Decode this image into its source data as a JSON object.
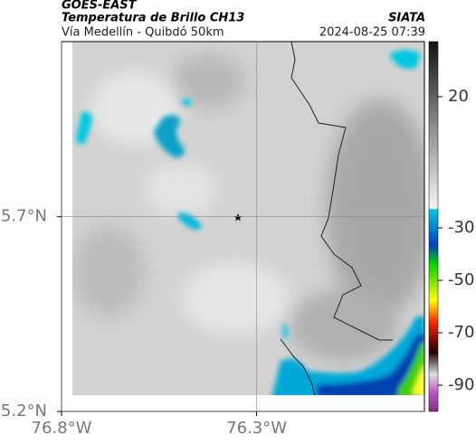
{
  "header": {
    "satellite": "GOES-EAST",
    "title": "Temperatura de Brillo CH13",
    "source": "SIATA",
    "subtitle": "Vía Medellín - Quibdó 50km",
    "timestamp": "2024-08-25 07:39"
  },
  "map": {
    "lonlim": [
      76.8,
      75.87
    ],
    "latlim": [
      5.2,
      6.15
    ],
    "lon_ticks": [
      {
        "value": 76.8,
        "label": "76.8°W"
      },
      {
        "value": 76.3,
        "label": "76.3°W"
      }
    ],
    "lat_ticks": [
      {
        "value": 5.7,
        "label": "5.7°N"
      },
      {
        "value": 5.2,
        "label": "5.2°N"
      }
    ],
    "grid": true
  },
  "colorbar": {
    "lim": [
      -100,
      41
    ],
    "ticks": [
      20,
      -30,
      -50,
      -70,
      -90
    ]
  }
}
